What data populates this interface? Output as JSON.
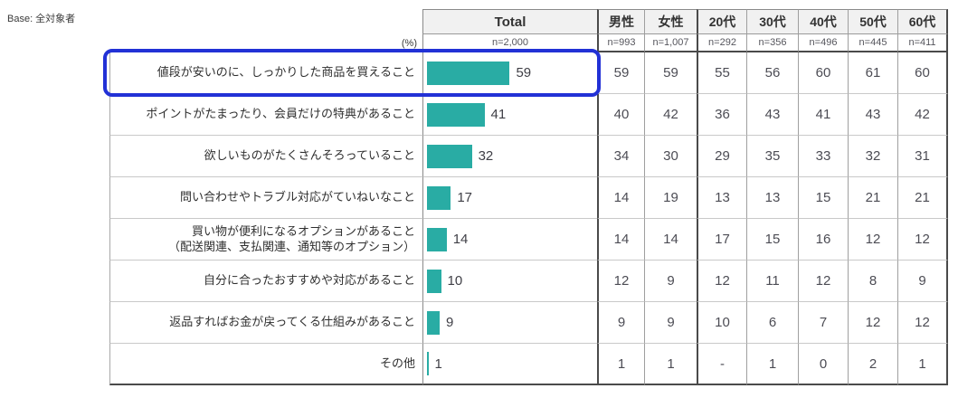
{
  "base_label": "Base: 全対象者",
  "percent_label": "(%)",
  "header": {
    "columns": [
      "Total",
      "男性",
      "女性",
      "20代",
      "30代",
      "40代",
      "50代",
      "60代"
    ],
    "ns": [
      "n=2,000",
      "n=993",
      "n=1,007",
      "n=292",
      "n=356",
      "n=496",
      "n=445",
      "n=411"
    ]
  },
  "rows": [
    {
      "label": "値段が安いのに、しっかりした商品を買えること",
      "bar": 59,
      "total": 59,
      "values": [
        59,
        59,
        55,
        56,
        60,
        61,
        60
      ]
    },
    {
      "label": "ポイントがたまったり、会員だけの特典があること",
      "bar": 41,
      "total": 41,
      "values": [
        40,
        42,
        36,
        43,
        41,
        43,
        42
      ]
    },
    {
      "label": "欲しいものがたくさんそろっていること",
      "bar": 32,
      "total": 32,
      "values": [
        34,
        30,
        29,
        35,
        33,
        32,
        31
      ]
    },
    {
      "label": "問い合わせやトラブル対応がていねいなこと",
      "bar": 17,
      "total": 17,
      "values": [
        14,
        19,
        13,
        13,
        15,
        21,
        21
      ]
    },
    {
      "label": "買い物が便利になるオプションがあること",
      "label2": "（配送関連、支払関連、通知等のオプション）",
      "bar": 14,
      "total": 14,
      "values": [
        14,
        14,
        17,
        15,
        16,
        12,
        12
      ]
    },
    {
      "label": "自分に合ったおすすめや対応があること",
      "bar": 10,
      "total": 10,
      "values": [
        12,
        9,
        12,
        11,
        12,
        8,
        9
      ]
    },
    {
      "label": "返品すればお金が戻ってくる仕組みがあること",
      "bar": 9,
      "total": 9,
      "values": [
        9,
        9,
        10,
        6,
        7,
        12,
        12
      ]
    },
    {
      "label": "その他",
      "bar": 1,
      "total": 1,
      "values": [
        1,
        1,
        "-",
        1,
        0,
        2,
        1
      ]
    }
  ],
  "colors": {
    "bar": "#29ACA4",
    "highlight": "#2231D6"
  },
  "chart_data": {
    "type": "bar",
    "orientation": "horizontal",
    "unit": "%",
    "base": "全対象者",
    "categories": [
      "値段が安いのに、しっかりした商品を買えること",
      "ポイントがたまったり、会員だけの特典があること",
      "欲しいものがたくさんそろっていること",
      "問い合わせやトラブル対応がていねいなこと",
      "買い物が便利になるオプションがあること（配送関連、支払関連、通知等のオプション）",
      "自分に合ったおすすめや対応があること",
      "返品すればお金が戻ってくる仕組みがあること",
      "その他"
    ],
    "series": [
      {
        "name": "Total",
        "n": "n=2,000",
        "values": [
          59,
          41,
          32,
          17,
          14,
          10,
          9,
          1
        ]
      },
      {
        "name": "男性",
        "n": "n=993",
        "values": [
          59,
          40,
          34,
          14,
          14,
          12,
          9,
          1
        ]
      },
      {
        "name": "女性",
        "n": "n=1,007",
        "values": [
          59,
          42,
          30,
          19,
          14,
          9,
          9,
          1
        ]
      },
      {
        "name": "20代",
        "n": "n=292",
        "values": [
          55,
          36,
          29,
          13,
          17,
          12,
          10,
          "-"
        ]
      },
      {
        "name": "30代",
        "n": "n=356",
        "values": [
          56,
          43,
          35,
          13,
          15,
          11,
          6,
          1
        ]
      },
      {
        "name": "40代",
        "n": "n=496",
        "values": [
          60,
          41,
          33,
          15,
          16,
          12,
          7,
          0
        ]
      },
      {
        "name": "50代",
        "n": "n=445",
        "values": [
          61,
          43,
          32,
          21,
          12,
          8,
          12,
          2
        ]
      },
      {
        "name": "60代",
        "n": "n=411",
        "values": [
          60,
          42,
          31,
          21,
          12,
          9,
          12,
          1
        ]
      }
    ],
    "highlighted_category_index": 0,
    "bars_shown_for_series": "Total",
    "legend_position": "none",
    "grid": "table"
  }
}
